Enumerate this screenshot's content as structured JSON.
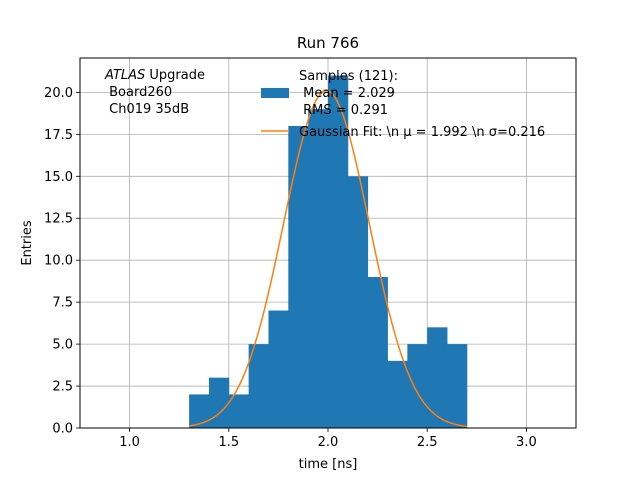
{
  "chart_data": {
    "type": "bar",
    "title": "Run 766",
    "xlabel": "time [ns]",
    "ylabel": "Entries",
    "xlim": [
      0.75,
      3.25
    ],
    "ylim": [
      0,
      22.05
    ],
    "xticks": [
      "1.0",
      "1.5",
      "2.0",
      "2.5",
      "3.0"
    ],
    "xtick_values": [
      1.0,
      1.5,
      2.0,
      2.5,
      3.0
    ],
    "yticks": [
      "0.0",
      "2.5",
      "5.0",
      "7.5",
      "10.0",
      "12.5",
      "15.0",
      "17.5",
      "20.0"
    ],
    "ytick_values": [
      0,
      2.5,
      5,
      7.5,
      10,
      12.5,
      15,
      17.5,
      20
    ],
    "grid": true,
    "bin_edges": [
      1.3,
      1.4,
      1.5,
      1.6,
      1.7,
      1.8,
      1.9,
      2.0,
      2.1,
      2.2,
      2.3,
      2.4,
      2.5,
      2.6,
      2.7
    ],
    "counts": [
      2,
      3,
      2,
      5,
      7,
      18,
      19,
      21,
      15,
      9,
      4,
      5,
      6,
      5
    ],
    "histogram_color": "#1f77b4",
    "fit": {
      "mu": 1.992,
      "sigma": 0.216,
      "amplitude": 20.1,
      "x_range": [
        1.3,
        2.7
      ],
      "color": "#ff7f0e"
    },
    "legend": {
      "placement": "top-center",
      "entries": [
        {
          "kind": "patch",
          "lines": [
            "Samples (121):",
            " Mean = 2.029",
            " RMS = 0.291"
          ]
        },
        {
          "kind": "line",
          "lines": [
            "Gaussian Fit: \\n μ = 1.992 \\n σ=0.216"
          ]
        }
      ]
    },
    "annotation": {
      "placement": "top-left",
      "lines": [
        "ATLAS Upgrade",
        " Board260",
        " Ch019 35dB"
      ]
    }
  }
}
